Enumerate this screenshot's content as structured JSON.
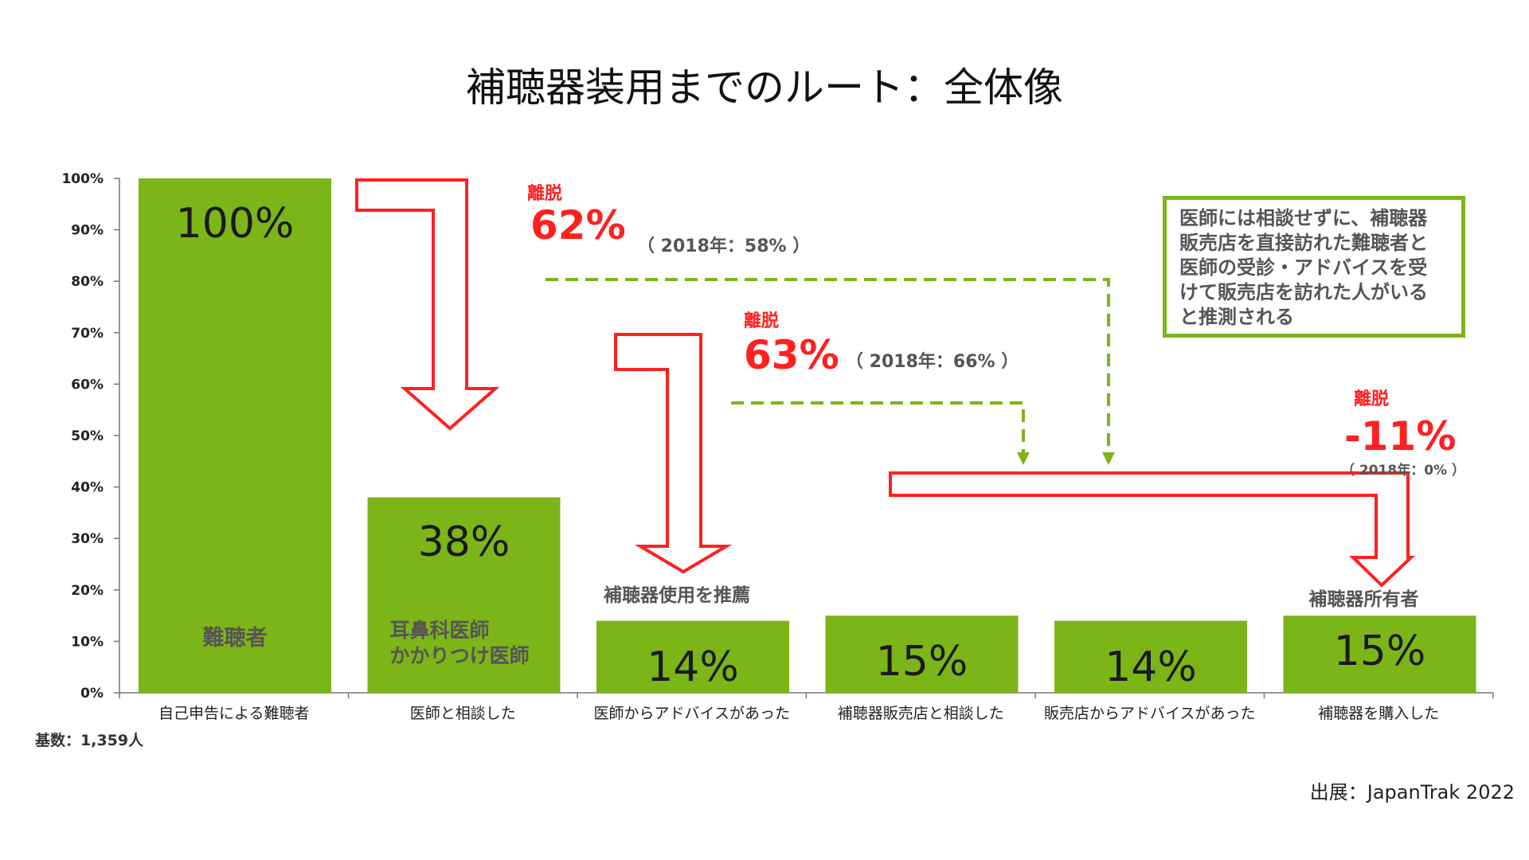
{
  "title": "補聴器装用までのルート：全体像",
  "source": "出展：JapanTrak 2022",
  "base_count": "基数：1,359人",
  "colors": {
    "bar": "#7cb518",
    "arrow": "#ff2020",
    "dashed": "#7cb518",
    "text_dark": "#1a1a1a",
    "text_grey": "#555555"
  },
  "chart_data": {
    "type": "bar",
    "categories": [
      "自己申告による難聴者",
      "医師と相談した",
      "医師からアドバイスがあった",
      "補聴器販売店と相談した",
      "販売店からアドバイスがあった",
      "補聴器を購入した"
    ],
    "values": [
      100,
      38,
      14,
      15,
      14,
      15
    ],
    "value_labels": [
      "100%",
      "38%",
      "14%",
      "15%",
      "14%",
      "15%"
    ],
    "ylim": [
      0,
      100
    ],
    "yticks": [
      "0%",
      "10%",
      "20%",
      "30%",
      "40%",
      "50%",
      "60%",
      "70%",
      "80%",
      "90%",
      "100%"
    ],
    "grid": false,
    "bar_inner_labels": [
      "難聴者",
      "耳鼻科医師",
      "かかりつけ医師"
    ],
    "bar_above_labels": [
      "補聴器使用を推薦",
      "補聴器所有者"
    ],
    "dropouts": [
      {
        "label": "離脱",
        "value": "62%",
        "prev": "（ 2018年：58% ）"
      },
      {
        "label": "離脱",
        "value": "63%",
        "prev": "（ 2018年：66% ）"
      },
      {
        "label": "離脱",
        "value": "-11%",
        "prev": "（ 2018年：0% ）"
      }
    ],
    "note": [
      "医師には相談せずに、補聴器",
      "販売店を直接訪れた難聴者と",
      "医師の受診・アドバイスを受",
      "けて販売店を訪れた人がいる",
      "と推測される"
    ]
  }
}
